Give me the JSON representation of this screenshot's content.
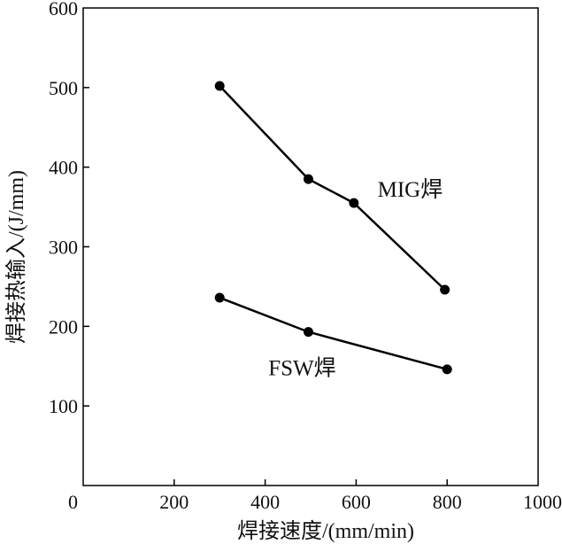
{
  "chart_data": {
    "type": "line",
    "title": "",
    "xlabel": "焊接速度/(mm/min)",
    "ylabel": "焊接热输入/(J/mm)",
    "xlim": [
      0,
      1000
    ],
    "ylim": [
      0,
      600
    ],
    "xticks": [
      0,
      200,
      400,
      600,
      800,
      1000
    ],
    "yticks": [
      100,
      200,
      300,
      400,
      500,
      600
    ],
    "grid": false,
    "legend": "none",
    "line_color": "#000000",
    "series": [
      {
        "name": "MIG焊",
        "x": [
          300,
          495,
          595,
          795
        ],
        "y": [
          502,
          385,
          355,
          246
        ]
      },
      {
        "name": "FSW焊",
        "x": [
          300,
          495,
          800
        ],
        "y": [
          236,
          193,
          146
        ]
      }
    ]
  }
}
